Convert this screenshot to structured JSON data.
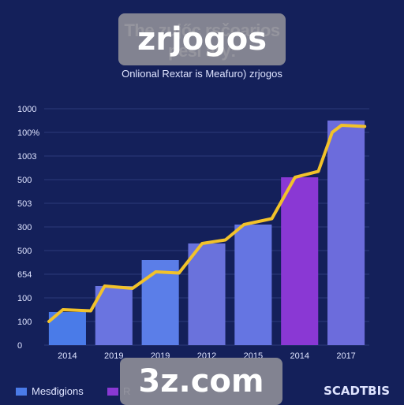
{
  "chart_data": {
    "type": "bar",
    "title_lines": [
      "The zujőc                          rsčoarios",
      "pesi                                   ary:"
    ],
    "subtitle": "Onlional Rextar is Meafuro) zrjogos",
    "categories": [
      "2014",
      "2019",
      "2019",
      "2012",
      "2015",
      "2014",
      "2017"
    ],
    "y_tick_labels": [
      "0",
      "100",
      "100",
      "654",
      "500",
      "300",
      "503",
      "500",
      "1003",
      "100%",
      "1000"
    ],
    "series": [
      {
        "name": "Mesđigions",
        "values": [
          1.4,
          2.5,
          3.6,
          4.3,
          5.1,
          7.1,
          9.5
        ],
        "colors": [
          "#4a7be8",
          "#6a74e0",
          "#5b7ee8",
          "#6a72dc",
          "#6575e2",
          "#8a38d4",
          "#6c6cdc"
        ]
      },
      {
        "name": "R",
        "color": "#8a38d4"
      }
    ],
    "trend_line": {
      "color": "#f2c22a",
      "points": [
        [
          0.0,
          1.0
        ],
        [
          0.3,
          1.5
        ],
        [
          0.9,
          1.45
        ],
        [
          1.2,
          2.5
        ],
        [
          1.8,
          2.4
        ],
        [
          2.3,
          3.1
        ],
        [
          2.8,
          3.05
        ],
        [
          3.3,
          4.3
        ],
        [
          3.8,
          4.45
        ],
        [
          4.2,
          5.1
        ],
        [
          4.8,
          5.35
        ],
        [
          5.3,
          7.1
        ],
        [
          5.8,
          7.35
        ],
        [
          6.1,
          9.0
        ],
        [
          6.3,
          9.3
        ],
        [
          6.8,
          9.25
        ]
      ]
    },
    "ylim": [
      0,
      10
    ],
    "grid": true,
    "legend_position": "bottom-left"
  },
  "watermarks": {
    "top": "zrjogos",
    "bottom": "3z.com"
  },
  "brand": "SCADTBIS",
  "colors": {
    "background": "#14205a",
    "grid": "#2b3a7a",
    "text": "#dfe4ff",
    "trend": "#f2c22a"
  }
}
